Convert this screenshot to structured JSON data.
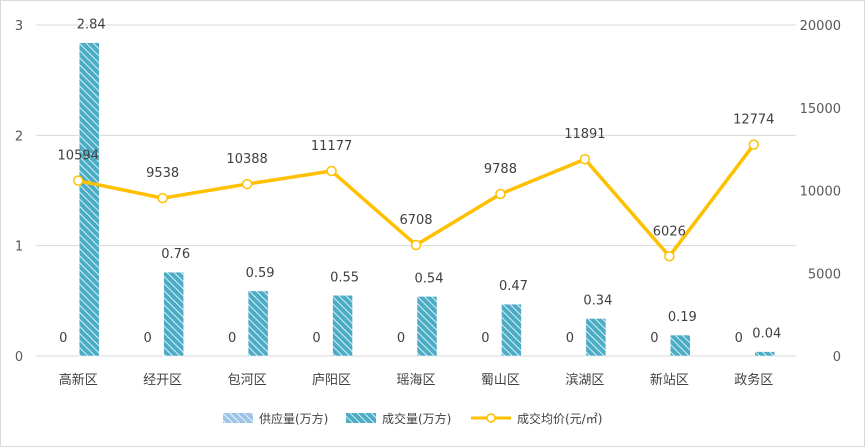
{
  "chart_data": {
    "type": "bar",
    "categories": [
      "高新区",
      "经开区",
      "包河区",
      "庐阳区",
      "瑶海区",
      "蜀山区",
      "滨湖区",
      "新站区",
      "政务区"
    ],
    "series": [
      {
        "name": "供应量(万方)",
        "type": "bar",
        "axis": "left",
        "values": [
          0,
          0,
          0,
          0,
          0,
          0,
          0,
          0,
          0
        ],
        "color": "#9dc3e6"
      },
      {
        "name": "成交量(万方)",
        "type": "bar",
        "axis": "left",
        "values": [
          2.84,
          0.76,
          0.59,
          0.55,
          0.54,
          0.47,
          0.34,
          0.19,
          0.04
        ],
        "color": "#4bacc6"
      },
      {
        "name": "成交均价(元/㎡)",
        "type": "line",
        "axis": "right",
        "values": [
          10594,
          9538,
          10388,
          11177,
          6708,
          9788,
          11891,
          6026,
          12774
        ],
        "color": "#ffc000"
      }
    ],
    "y_left": {
      "range": [
        0,
        3
      ],
      "ticks": [
        "0",
        "1",
        "2",
        "3"
      ]
    },
    "y_right": {
      "range": [
        0,
        20000
      ],
      "ticks": [
        "0",
        "5000",
        "10000",
        "15000",
        "20000"
      ]
    },
    "grid": true,
    "legend": "bottom",
    "title": "",
    "xlabel": "",
    "ylabel": ""
  }
}
